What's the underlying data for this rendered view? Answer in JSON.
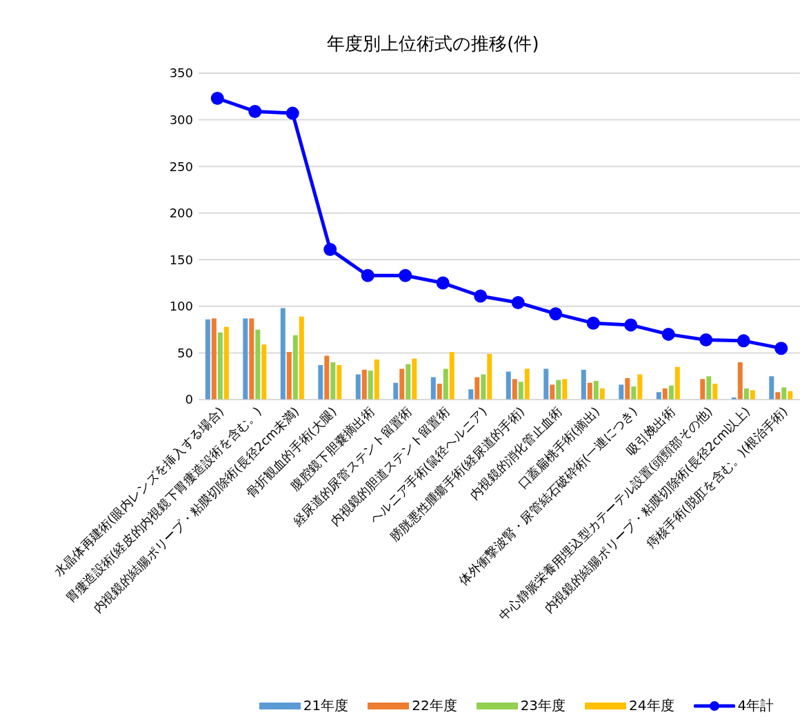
{
  "chart_data": {
    "type": "bar",
    "title": "年度別上位術式の推移(件)",
    "categories": [
      "水晶体再建術(眼内レンズを挿入する場合)",
      "胃瘻造設術(経皮的内視鏡下胃瘻造設術を含む。)",
      "内視鏡的結腸ポリープ・粘膜切除術(長径2cm未満)",
      "骨折観血的手術(大腿)",
      "腹腔鏡下胆嚢摘出術",
      "経尿道的尿管ステント留置術",
      "内視鏡的胆道ステント留置術",
      "ヘルニア手術(鼠径ヘルニア)",
      "膀胱悪性腫瘍手術(経尿道的手術)",
      "内視鏡的消化管止血術",
      "口蓋扁桃手術(摘出)",
      "体外衝撃波腎・尿管結石破砕術(一連につき)",
      "吸引娩出術",
      "中心静脈栄養用埋込型カテーテル設置(頭頸部その他)",
      "内視鏡的結腸ポリープ・粘膜切除術(長径2cm以上)",
      "痔核手術(脱肛を含む。)(根治手術)"
    ],
    "series": [
      {
        "name": "21年度",
        "color": "#5b9bd5",
        "values": [
          86,
          87,
          98,
          37,
          27,
          18,
          24,
          11,
          30,
          33,
          32,
          16,
          8,
          null,
          1,
          25
        ]
      },
      {
        "name": "22年度",
        "color": "#ed7d31",
        "values": [
          87,
          87,
          51,
          47,
          32,
          33,
          17,
          24,
          22,
          16,
          18,
          23,
          12,
          22,
          40,
          8
        ]
      },
      {
        "name": "23年度",
        "color": "#92d050",
        "values": [
          72,
          75,
          69,
          40,
          31,
          38,
          33,
          27,
          19,
          21,
          20,
          14,
          15,
          25,
          12,
          13
        ]
      },
      {
        "name": "24年度",
        "color": "#ffc000",
        "values": [
          78,
          59,
          89,
          37,
          43,
          44,
          51,
          49,
          33,
          22,
          12,
          27,
          35,
          17,
          10,
          9
        ]
      },
      {
        "name": "4年計",
        "type": "line",
        "color": "#0000ff",
        "marker": "circle",
        "values": [
          323,
          309,
          307,
          161,
          133,
          133,
          125,
          111,
          104,
          92,
          82,
          80,
          70,
          64,
          63,
          55
        ]
      }
    ],
    "ylim": [
      0,
      350
    ],
    "yticks": [
      0,
      50,
      100,
      150,
      200,
      250,
      300,
      350
    ],
    "grid": "y",
    "legend": "bottom"
  }
}
